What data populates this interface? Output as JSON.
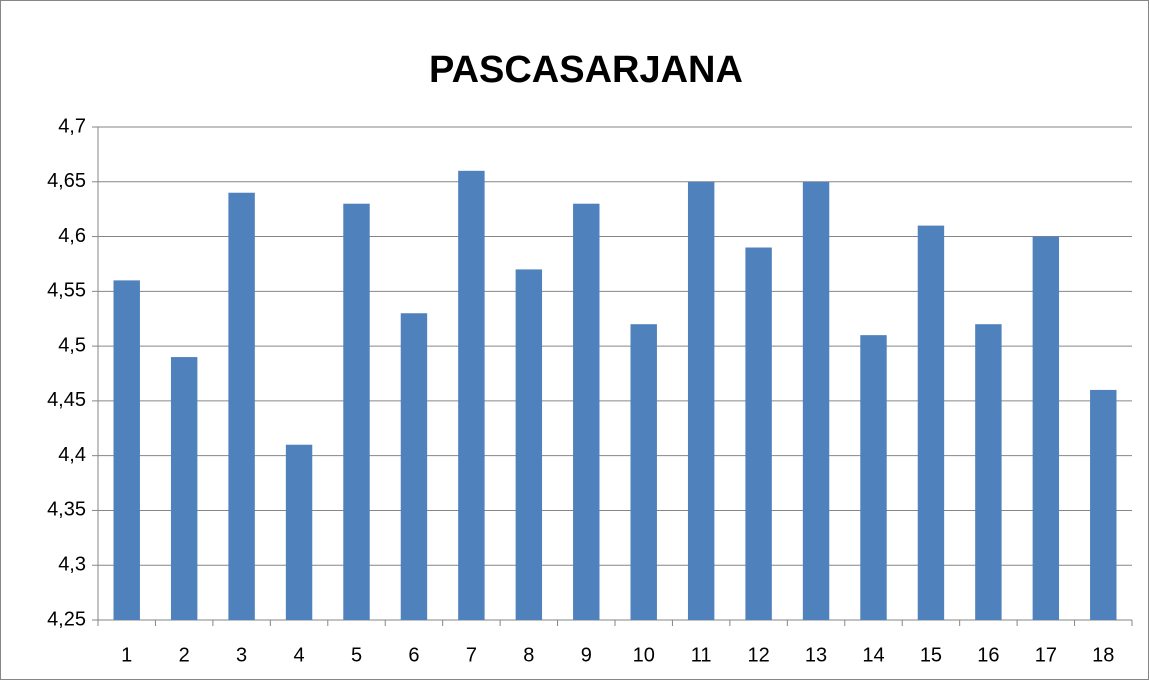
{
  "chart_data": {
    "type": "bar",
    "title": "PASCASARJANA",
    "categories": [
      "1",
      "2",
      "3",
      "4",
      "5",
      "6",
      "7",
      "8",
      "9",
      "10",
      "11",
      "12",
      "13",
      "14",
      "15",
      "16",
      "17",
      "18"
    ],
    "values": [
      4.56,
      4.49,
      4.64,
      4.41,
      4.63,
      4.53,
      4.66,
      4.57,
      4.63,
      4.52,
      4.65,
      4.59,
      4.65,
      4.51,
      4.61,
      4.52,
      4.6,
      4.46
    ],
    "color": "#4f81bd",
    "ylim": [
      4.25,
      4.7
    ],
    "yticks": [
      {
        "value": 4.25,
        "label": "4,25"
      },
      {
        "value": 4.3,
        "label": "4,3"
      },
      {
        "value": 4.35,
        "label": "4,35"
      },
      {
        "value": 4.4,
        "label": "4,4"
      },
      {
        "value": 4.45,
        "label": "4,45"
      },
      {
        "value": 4.5,
        "label": "4,5"
      },
      {
        "value": 4.55,
        "label": "4,55"
      },
      {
        "value": 4.6,
        "label": "4,6"
      },
      {
        "value": 4.65,
        "label": "4,65"
      },
      {
        "value": 4.7,
        "label": "4,7"
      }
    ],
    "grid": true
  }
}
